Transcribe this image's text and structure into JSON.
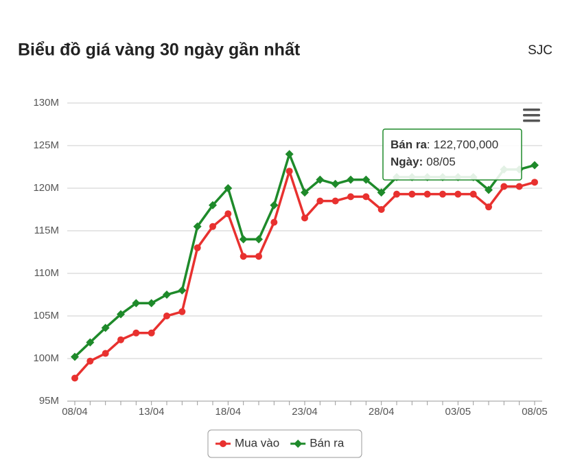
{
  "chart_data": {
    "type": "line",
    "title": "Biểu đồ giá vàng 30 ngày gần nhất",
    "subtitle": "SJC",
    "categories": [
      "08/04",
      null,
      null,
      null,
      null,
      "13/04",
      null,
      null,
      null,
      null,
      "18/04",
      null,
      null,
      null,
      null,
      "23/04",
      null,
      null,
      null,
      null,
      "28/04",
      null,
      null,
      null,
      null,
      "03/05",
      null,
      null,
      null,
      null,
      "08/05"
    ],
    "series": [
      {
        "name": "Mua vào",
        "color": "#e8312f",
        "marker": "circle",
        "values": [
          97.7,
          99.7,
          100.6,
          102.2,
          103.0,
          103.0,
          105.0,
          105.5,
          113.0,
          115.5,
          117.0,
          112.0,
          112.0,
          116.0,
          122.0,
          116.5,
          118.5,
          118.5,
          119.0,
          119.0,
          117.5,
          119.3,
          119.3,
          119.3,
          119.3,
          119.3,
          119.3,
          117.8,
          120.2,
          120.2,
          120.7
        ]
      },
      {
        "name": "Bán ra",
        "color": "#1e8a2a",
        "marker": "diamond",
        "values": [
          100.2,
          101.9,
          103.6,
          105.2,
          106.5,
          106.5,
          107.5,
          108.0,
          115.5,
          118.0,
          120.0,
          114.0,
          114.0,
          118.0,
          124.0,
          119.5,
          121.0,
          120.5,
          121.0,
          121.0,
          119.5,
          121.3,
          121.3,
          121.3,
          121.3,
          121.3,
          121.3,
          119.8,
          122.2,
          122.2,
          122.7
        ]
      }
    ],
    "ylim": [
      95,
      130
    ],
    "yticks": [
      {
        "value": 95,
        "label": "95M"
      },
      {
        "value": 100,
        "label": "100M"
      },
      {
        "value": 105,
        "label": "105M"
      },
      {
        "value": 110,
        "label": "110M"
      },
      {
        "value": 115,
        "label": "115M"
      },
      {
        "value": 120,
        "label": "120M"
      },
      {
        "value": 125,
        "label": "125M"
      },
      {
        "value": 130,
        "label": "130M"
      }
    ],
    "grid": true,
    "legend": "bottom",
    "tooltip": {
      "series": 1,
      "index": 30,
      "separator": ":",
      "value_label": "122,700,000",
      "date_label": "Ngày:"
    }
  }
}
